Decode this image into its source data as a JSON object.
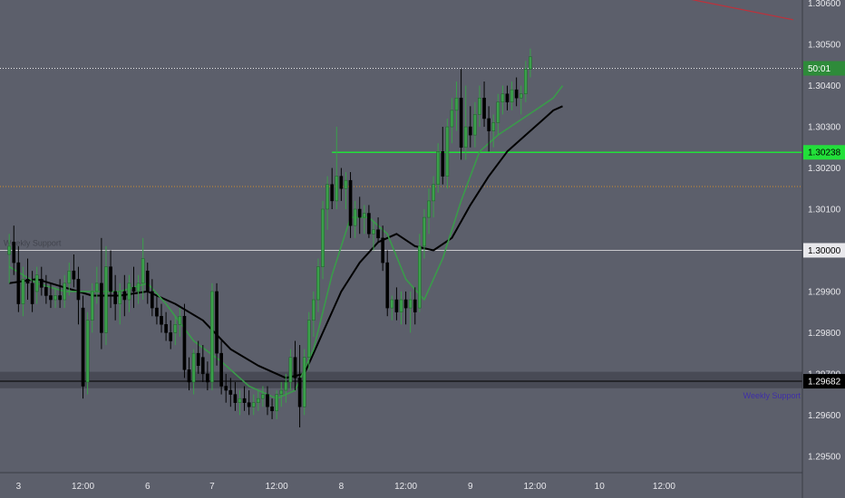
{
  "chart_data": {
    "type": "candlestick",
    "price_axis": {
      "ylim": [
        1.2946,
        1.30608
      ],
      "ticks": [
        {
          "value": 1.306,
          "label": "1.30600"
        },
        {
          "value": 1.305,
          "label": "1.30500"
        },
        {
          "value": 1.304,
          "label": "1.30400"
        },
        {
          "value": 1.303,
          "label": "1.30300"
        },
        {
          "value": 1.302,
          "label": "1.30200"
        },
        {
          "value": 1.301,
          "label": "1.30100"
        },
        {
          "value": 1.299,
          "label": "1.29900"
        },
        {
          "value": 1.298,
          "label": "1.29800"
        },
        {
          "value": 1.297,
          "label": "1.29700"
        },
        {
          "value": 1.296,
          "label": "1.29600"
        },
        {
          "value": 1.295,
          "label": "1.29500"
        }
      ]
    },
    "time_axis": {
      "xlim": [
        -2,
        172
      ],
      "ticks": [
        {
          "bar": 2,
          "label": "3"
        },
        {
          "bar": 16,
          "label": "12:00"
        },
        {
          "bar": 30,
          "label": "6"
        },
        {
          "bar": 44,
          "label": "7"
        },
        {
          "bar": 58,
          "label": "12:00"
        },
        {
          "bar": 72,
          "label": "8"
        },
        {
          "bar": 86,
          "label": "12:00"
        },
        {
          "bar": 100,
          "label": "9"
        },
        {
          "bar": 114,
          "label": "12:00"
        },
        {
          "bar": 128,
          "label": "10"
        },
        {
          "bar": 142,
          "label": "12:00"
        },
        {
          "bar": 156,
          "label": ""
        }
      ]
    },
    "candles": [
      [
        1.2999,
        1.3004,
        1.2992,
        1.3001
      ],
      [
        1.3002,
        1.3006,
        1.2994,
        1.2997
      ],
      [
        1.2997,
        1.3001,
        1.2985,
        1.2987
      ],
      [
        1.2987,
        1.2996,
        1.2984,
        1.2993
      ],
      [
        1.2993,
        1.2998,
        1.2988,
        1.2992
      ],
      [
        1.2992,
        1.2995,
        1.2985,
        1.2987
      ],
      [
        1.299,
        1.2996,
        1.2987,
        1.2994
      ],
      [
        1.2993,
        1.2996,
        1.2989,
        1.2991
      ],
      [
        1.2991,
        1.2994,
        1.2987,
        1.2989
      ],
      [
        1.2989,
        1.2992,
        1.2986,
        1.2988
      ],
      [
        1.2988,
        1.2991,
        1.2986,
        1.2989
      ],
      [
        1.2989,
        1.2993,
        1.2986,
        1.2988
      ],
      [
        1.2988,
        1.2994,
        1.2986,
        1.2992
      ],
      [
        1.2992,
        1.2997,
        1.2989,
        1.2995
      ],
      [
        1.2995,
        1.2999,
        1.2991,
        1.2993
      ],
      [
        1.2993,
        1.2996,
        1.2982,
        1.2988
      ],
      [
        1.2986,
        1.2989,
        1.2964,
        1.2967
      ],
      [
        1.2968,
        1.2985,
        1.2965,
        1.2983
      ],
      [
        1.2983,
        1.2992,
        1.298,
        1.299
      ],
      [
        1.299,
        1.2996,
        1.2987,
        1.2992
      ],
      [
        1.2992,
        1.3003,
        1.2976,
        1.298
      ],
      [
        1.298,
        1.3001,
        1.2977,
        1.2996
      ],
      [
        1.2996,
        1.3,
        1.2986,
        1.299
      ],
      [
        1.299,
        1.2994,
        1.2983,
        1.2987
      ],
      [
        1.2987,
        1.2992,
        1.2982,
        1.299
      ],
      [
        1.299,
        1.2994,
        1.2984,
        1.2988
      ],
      [
        1.2988,
        1.2994,
        1.2985,
        1.2992
      ],
      [
        1.2991,
        1.2996,
        1.2986,
        1.299
      ],
      [
        1.299,
        1.2994,
        1.2987,
        1.2992
      ],
      [
        1.2992,
        1.3003,
        1.2988,
        1.2998
      ],
      [
        1.2995,
        1.2997,
        1.2987,
        1.299
      ],
      [
        1.299,
        1.2993,
        1.2984,
        1.2986
      ],
      [
        1.2986,
        1.2989,
        1.2982,
        1.2984
      ],
      [
        1.2984,
        1.2987,
        1.298,
        1.2982
      ],
      [
        1.2982,
        1.2985,
        1.2978,
        1.298
      ],
      [
        1.298,
        1.2983,
        1.2976,
        1.2978
      ],
      [
        1.298,
        1.2984,
        1.2977,
        1.2982
      ],
      [
        1.2982,
        1.2986,
        1.2979,
        1.2984
      ],
      [
        1.2984,
        1.2987,
        1.2969,
        1.2971
      ],
      [
        1.2971,
        1.2974,
        1.2966,
        1.2968
      ],
      [
        1.2968,
        1.2976,
        1.2965,
        1.2975
      ],
      [
        1.2975,
        1.2978,
        1.297,
        1.2972
      ],
      [
        1.2974,
        1.2977,
        1.2968,
        1.297
      ],
      [
        1.297,
        1.2973,
        1.2966,
        1.2968
      ],
      [
        1.2968,
        1.2992,
        1.2966,
        1.299
      ],
      [
        1.299,
        1.2992,
        1.2972,
        1.2975
      ],
      [
        1.2975,
        1.2978,
        1.2965,
        1.2967
      ],
      [
        1.2967,
        1.297,
        1.2963,
        1.2966
      ],
      [
        1.2966,
        1.2969,
        1.2962,
        1.2965
      ],
      [
        1.2965,
        1.2968,
        1.2961,
        1.2963
      ],
      [
        1.2963,
        1.2966,
        1.296,
        1.2964
      ],
      [
        1.2964,
        1.2967,
        1.2961,
        1.2963
      ],
      [
        1.2963,
        1.2966,
        1.296,
        1.2962
      ],
      [
        1.2962,
        1.2965,
        1.296,
        1.2963
      ],
      [
        1.2963,
        1.2966,
        1.2961,
        1.2964
      ],
      [
        1.2964,
        1.2967,
        1.2962,
        1.2965
      ],
      [
        1.2965,
        1.2967,
        1.296,
        1.2962
      ],
      [
        1.2962,
        1.2964,
        1.2959,
        1.2961
      ],
      [
        1.2961,
        1.2966,
        1.2959,
        1.2965
      ],
      [
        1.2965,
        1.2968,
        1.2962,
        1.2966
      ],
      [
        1.2966,
        1.297,
        1.2963,
        1.2968
      ],
      [
        1.2968,
        1.2976,
        1.2966,
        1.2974
      ],
      [
        1.2974,
        1.2978,
        1.2966,
        1.2969
      ],
      [
        1.2969,
        1.2977,
        1.2957,
        1.2962
      ],
      [
        1.2962,
        1.2976,
        1.296,
        1.2974
      ],
      [
        1.2974,
        1.2985,
        1.2971,
        1.2983
      ],
      [
        1.2983,
        1.299,
        1.2979,
        1.2988
      ],
      [
        1.2988,
        1.2998,
        1.2985,
        1.2996
      ],
      [
        1.2996,
        1.3012,
        1.2993,
        1.301
      ],
      [
        1.301,
        1.3018,
        1.3005,
        1.3016
      ],
      [
        1.3016,
        1.302,
        1.301,
        1.3012
      ],
      [
        1.3012,
        1.303,
        1.301,
        1.3018
      ],
      [
        1.3018,
        1.302,
        1.3012,
        1.3015
      ],
      [
        1.3015,
        1.3019,
        1.301,
        1.3017
      ],
      [
        1.3017,
        1.3019,
        1.3003,
        1.3006
      ],
      [
        1.3006,
        1.3012,
        1.3003,
        1.301
      ],
      [
        1.301,
        1.3013,
        1.3004,
        1.3008
      ],
      [
        1.3008,
        1.3011,
        1.3004,
        1.3009
      ],
      [
        1.3009,
        1.3011,
        1.3003,
        1.3004
      ],
      [
        1.3004,
        1.3007,
        1.3,
        1.3005
      ],
      [
        1.3005,
        1.3008,
        1.3002,
        1.3003
      ],
      [
        1.3003,
        1.3006,
        1.2995,
        1.2997
      ],
      [
        1.2997,
        1.3,
        1.2984,
        1.2986
      ],
      [
        1.2986,
        1.2989,
        1.2983,
        1.2988
      ],
      [
        1.2988,
        1.2991,
        1.2983,
        1.2985
      ],
      [
        1.2985,
        1.299,
        1.2982,
        1.2988
      ],
      [
        1.2988,
        1.299,
        1.2982,
        1.2986
      ],
      [
        1.2986,
        1.299,
        1.298,
        1.2988
      ],
      [
        1.2988,
        1.2991,
        1.2982,
        1.2985
      ],
      [
        1.2986,
        1.3004,
        1.2985,
        1.3001
      ],
      [
        1.3001,
        1.301,
        1.2998,
        1.3008
      ],
      [
        1.3008,
        1.3015,
        1.3004,
        1.3012
      ],
      [
        1.3012,
        1.3018,
        1.3008,
        1.3016
      ],
      [
        1.3016,
        1.3026,
        1.3014,
        1.3024
      ],
      [
        1.3024,
        1.303,
        1.3016,
        1.3018
      ],
      [
        1.3018,
        1.3032,
        1.3015,
        1.303
      ],
      [
        1.303,
        1.3037,
        1.3026,
        1.3034
      ],
      [
        1.3034,
        1.3041,
        1.3029,
        1.3037
      ],
      [
        1.3037,
        1.3044,
        1.3022,
        1.3025
      ],
      [
        1.3025,
        1.304,
        1.3022,
        1.303
      ],
      [
        1.303,
        1.3035,
        1.3025,
        1.3028
      ],
      [
        1.3028,
        1.3036,
        1.3025,
        1.3033
      ],
      [
        1.3033,
        1.304,
        1.303,
        1.3037
      ],
      [
        1.3037,
        1.3041,
        1.303,
        1.3032
      ],
      [
        1.3032,
        1.3035,
        1.3024,
        1.3029
      ],
      [
        1.3029,
        1.3033,
        1.3025,
        1.3031
      ],
      [
        1.3031,
        1.3038,
        1.3028,
        1.3036
      ],
      [
        1.3036,
        1.304,
        1.3033,
        1.3038
      ],
      [
        1.3038,
        1.304,
        1.3034,
        1.3036
      ],
      [
        1.3036,
        1.3041,
        1.3034,
        1.3039
      ],
      [
        1.3039,
        1.3042,
        1.3035,
        1.3037
      ],
      [
        1.3037,
        1.304,
        1.3033,
        1.3038
      ],
      [
        1.3038,
        1.3046,
        1.3036,
        1.3044
      ],
      [
        1.3044,
        1.3049,
        1.3042,
        1.3047
      ]
    ],
    "moving_averages": [
      {
        "color": "#000000",
        "values": [
          [
            0,
            1.2992
          ],
          [
            6,
            1.2993
          ],
          [
            12,
            1.2991
          ],
          [
            18,
            1.2989
          ],
          [
            24,
            1.2989
          ],
          [
            30,
            1.299
          ],
          [
            36,
            1.2987
          ],
          [
            42,
            1.2983
          ],
          [
            48,
            1.2976
          ],
          [
            54,
            1.2972
          ],
          [
            60,
            1.2969
          ],
          [
            64,
            1.297
          ],
          [
            68,
            1.298
          ],
          [
            72,
            1.299
          ],
          [
            76,
            1.2997
          ],
          [
            80,
            1.3002
          ],
          [
            84,
            1.3004
          ],
          [
            88,
            1.3001
          ],
          [
            92,
            1.3
          ],
          [
            96,
            1.3003
          ],
          [
            100,
            1.3011
          ],
          [
            104,
            1.3018
          ],
          [
            108,
            1.3024
          ],
          [
            112,
            1.3028
          ],
          [
            116,
            1.3032
          ],
          [
            118,
            1.3034
          ],
          [
            120,
            1.3035
          ]
        ]
      },
      {
        "color": "#3a9a4a",
        "values": [
          [
            0,
            1.2996
          ],
          [
            6,
            1.2992
          ],
          [
            12,
            1.299
          ],
          [
            18,
            1.299
          ],
          [
            24,
            1.299
          ],
          [
            30,
            1.2992
          ],
          [
            34,
            1.2987
          ],
          [
            40,
            1.2978
          ],
          [
            46,
            1.2973
          ],
          [
            52,
            1.2967
          ],
          [
            58,
            1.2964
          ],
          [
            62,
            1.2966
          ],
          [
            66,
            1.2976
          ],
          [
            70,
            1.2994
          ],
          [
            74,
            1.3008
          ],
          [
            78,
            1.3008
          ],
          [
            82,
            1.3004
          ],
          [
            86,
            1.2993
          ],
          [
            90,
            1.2988
          ],
          [
            94,
            1.2998
          ],
          [
            98,
            1.3012
          ],
          [
            102,
            1.3024
          ],
          [
            106,
            1.3028
          ],
          [
            110,
            1.3031
          ],
          [
            114,
            1.3034
          ],
          [
            118,
            1.3037
          ],
          [
            120,
            1.304
          ]
        ]
      }
    ],
    "levels": [
      {
        "value": 1.30238,
        "label": "1.30238",
        "color": "#22e03a",
        "style": "solid",
        "from_bar": 70
      },
      {
        "value": 1.3,
        "label": "1.30000",
        "color": "#c8c8cc",
        "style": "solid"
      },
      {
        "value": 1.30442,
        "label": "50:01",
        "color": "#e8e8e8",
        "style": "dotted",
        "tag_color": "#2e8b3a"
      },
      {
        "value": 1.30155,
        "label": "",
        "color": "#d08c2c",
        "style": "dotted"
      },
      {
        "value": 1.29682,
        "label": "1.29682",
        "color": "#000000",
        "style": "solid"
      }
    ],
    "zone": {
      "from": 1.29665,
      "to": 1.29705,
      "color": "#484a55",
      "label": "Weekly Support",
      "label_color": "#3f2fa8"
    },
    "watermark": "Weekly Support",
    "trendline": {
      "from": [
        144,
        1.30618
      ],
      "to": [
        170,
        1.3056
      ],
      "color": "#c0303a"
    },
    "colors": {
      "background": "#5c5f6b",
      "bull": "#3aa04a",
      "bear": "#000000"
    }
  }
}
